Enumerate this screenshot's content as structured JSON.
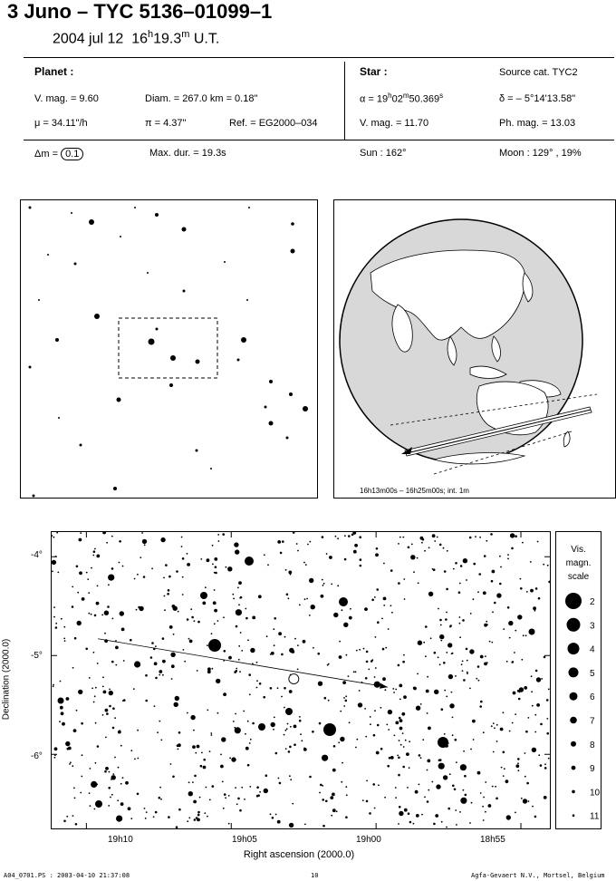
{
  "header": {
    "title": "3 Juno  –  TYC 5136–01099–1",
    "date": "2004 jul 12",
    "time_h": "16",
    "time_h_sup": "h",
    "time_m": "19.3",
    "time_m_sup": "m",
    "time_ut": "U.T."
  },
  "planet": {
    "heading": "Planet :",
    "vmag": "V. mag. =  9.60",
    "diam": "Diam. = 267.0 km = 0.18\"",
    "mu": "μ =  34.11\"/h",
    "pi": "π =  4.37\"",
    "ref": "Ref. = EG2000–034"
  },
  "star": {
    "heading": "Star :",
    "source": "Source cat.  TYC2",
    "alpha_prefix": "α = 19",
    "alpha_h": "h",
    "alpha_mid": "02",
    "alpha_m": "m",
    "alpha_sec": "50.369",
    "alpha_s": "s",
    "delta": "δ = – 5°14'13.58\"",
    "vmag": "V. mag. = 11.70",
    "phmag": "Ph. mag. = 13.03"
  },
  "footer_row": {
    "dm_label": "Δm =",
    "dm_value": "0.1",
    "maxdur": "Max. dur. = 19.3s",
    "sun": "Sun : 162°",
    "moon": "Moon : 129° , 19%"
  },
  "globe_caption": "16h13m00s – 16h25m00s; int.  1m",
  "chart_data": {
    "type": "scatter",
    "xlabel": "Right ascension (2000.0)",
    "ylabel": "Declination (2000.0)",
    "x_tick_labels": [
      "19h10",
      "19h05",
      "19h00",
      "18h55"
    ],
    "y_tick_labels": [
      "-4°",
      "-5°",
      "-6°"
    ],
    "xlim_deg": [
      287.8,
      283.5
    ],
    "ylim_deg": [
      -6.75,
      -3.75
    ],
    "track": {
      "start": [
        287.4,
        -4.83
      ],
      "end": [
        284.9,
        -5.32
      ]
    },
    "event_point": [
      285.71,
      -5.237
    ]
  },
  "scale": {
    "title_1": "Vis.",
    "title_2": "magn.",
    "title_3": "scale",
    "mags": [
      "2",
      "3",
      "4",
      "5",
      "6",
      "7",
      "8",
      "9",
      "10",
      "11"
    ]
  },
  "page_footer": {
    "left": "A04_0701.PS : 2003-04-10 21:37:08",
    "center": "10",
    "right": "Agfa-Gevaert N.V., Mortsel, Belgium"
  }
}
